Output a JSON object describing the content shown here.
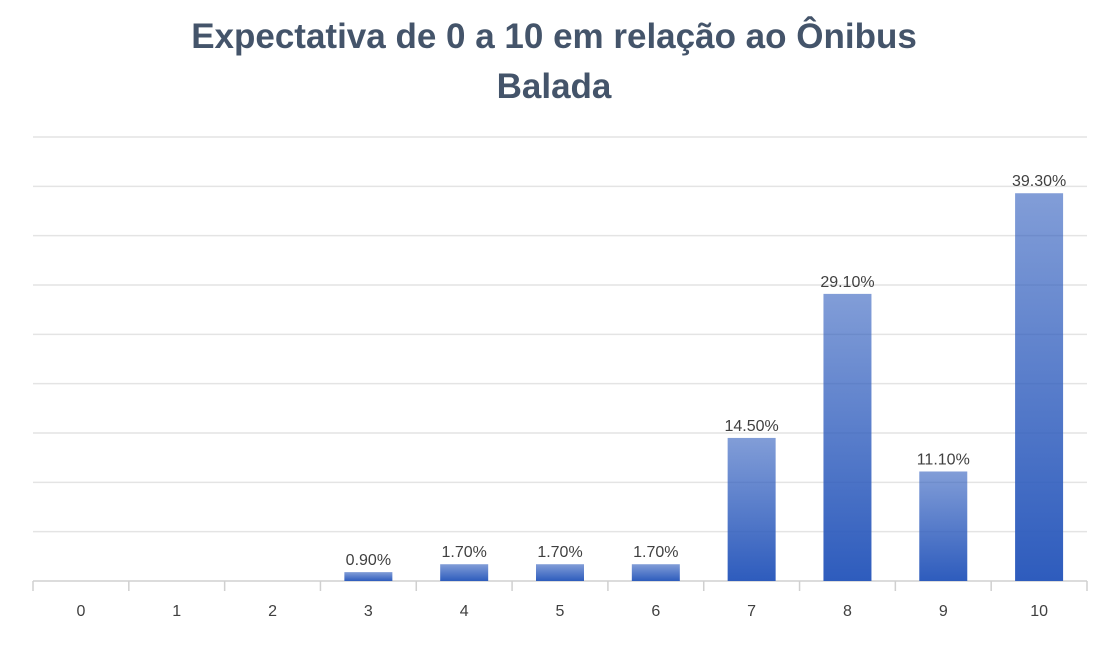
{
  "chart_data": {
    "type": "bar",
    "title": "Expectativa de 0 a 10 em relação ao Ônibus Balada",
    "categories": [
      "0",
      "1",
      "2",
      "3",
      "4",
      "5",
      "6",
      "7",
      "8",
      "9",
      "10"
    ],
    "values": [
      null,
      null,
      null,
      0.9,
      1.7,
      1.7,
      1.7,
      14.5,
      29.1,
      11.1,
      39.3
    ],
    "value_labels": [
      null,
      null,
      null,
      "0.90%",
      "1.70%",
      "1.70%",
      "1.70%",
      "14.50%",
      "29.10%",
      "11.10%",
      "39.30%"
    ],
    "color": "#2e5cbd",
    "ylim": [
      0,
      45
    ],
    "yticks": [
      0,
      5,
      10,
      15,
      20,
      25,
      30,
      35,
      40,
      45
    ],
    "grid": true
  }
}
